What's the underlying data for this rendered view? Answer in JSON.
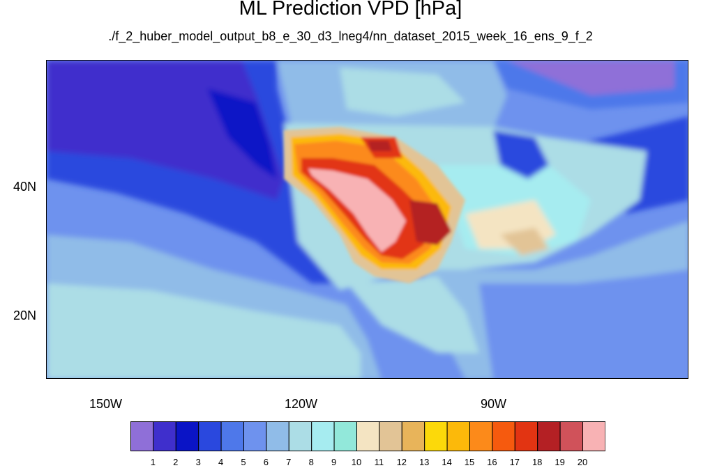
{
  "title": "ML Prediction VPD [hPa]",
  "subtitle": "./f_2_huber_model_output_b8_e_30_d3_lneg4/nn_dataset_2015_week_16_ens_9_f_2",
  "axes": {
    "lat_labels": [
      "40N",
      "20N"
    ],
    "lon_labels": [
      "150W",
      "120W",
      "90W"
    ]
  },
  "colorbar": {
    "labels": [
      "1",
      "2",
      "3",
      "4",
      "5",
      "6",
      "7",
      "8",
      "9",
      "10",
      "11",
      "12",
      "13",
      "14",
      "15",
      "16",
      "17",
      "18",
      "19",
      "20"
    ],
    "colors": [
      "#8f6fd8",
      "#3f2fcc",
      "#0a14c6",
      "#2a48de",
      "#4e78ea",
      "#6e92ee",
      "#90bce8",
      "#acdde6",
      "#a6ecf0",
      "#92e8da",
      "#f4e4c2",
      "#e2c496",
      "#e8b45a",
      "#fcd90a",
      "#fcb90a",
      "#fc8a1a",
      "#f65a0e",
      "#e23412",
      "#b42024",
      "#d0525a",
      "#f8b2b4"
    ]
  }
}
